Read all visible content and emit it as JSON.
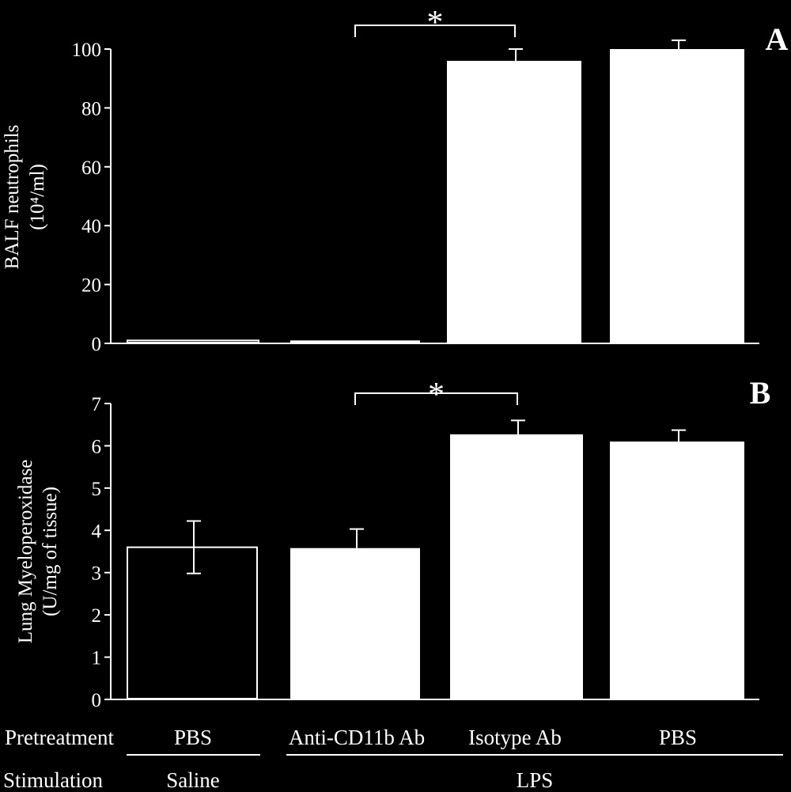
{
  "figure": {
    "background": "#000000",
    "foreground": "#ffffff",
    "row_labels": {
      "pretreatment": "Pretreatment",
      "stimulation": "Stimulation"
    },
    "pretreatment": [
      "PBS",
      "Anti-CD11b Ab",
      "Isotype Ab",
      "PBS"
    ],
    "stimulation": [
      "Saline",
      "LPS"
    ]
  },
  "chart_data": [
    {
      "type": "bar",
      "panel_label": "A",
      "ylabel": [
        "BALF neutrophils",
        "(10⁴/ml)"
      ],
      "ylim": [
        0,
        100
      ],
      "yticks": [
        0,
        20,
        40,
        60,
        80,
        100
      ],
      "categories": [
        "PBS / Saline",
        "Anti-CD11b Ab / LPS",
        "Isotype Ab / LPS",
        "PBS / LPS"
      ],
      "values": [
        1,
        1,
        96,
        100
      ],
      "errors": [
        0,
        0,
        4,
        3
      ],
      "error_style": [
        "none",
        "none",
        "up",
        "up"
      ],
      "bar_fill": [
        "outline",
        "white",
        "white",
        "white"
      ],
      "significance": {
        "from": 1,
        "to": 2,
        "label": "*"
      }
    },
    {
      "type": "bar",
      "panel_label": "B",
      "ylabel": [
        "Lung Myeloperoxidase",
        "(U/mg of tissue)"
      ],
      "ylim": [
        0,
        7
      ],
      "yticks": [
        0,
        1,
        2,
        3,
        4,
        5,
        6,
        7
      ],
      "categories": [
        "PBS / Saline",
        "Anti-CD11b Ab / LPS",
        "Isotype Ab / LPS",
        "PBS / LPS"
      ],
      "values": [
        3.6,
        3.58,
        6.27,
        6.1
      ],
      "errors": [
        0.62,
        0.45,
        0.33,
        0.27
      ],
      "error_style": [
        "both",
        "up",
        "up",
        "up"
      ],
      "bar_fill": [
        "outline",
        "white",
        "white",
        "white"
      ],
      "significance": {
        "from": 1,
        "to": 2,
        "label": "*"
      }
    }
  ]
}
